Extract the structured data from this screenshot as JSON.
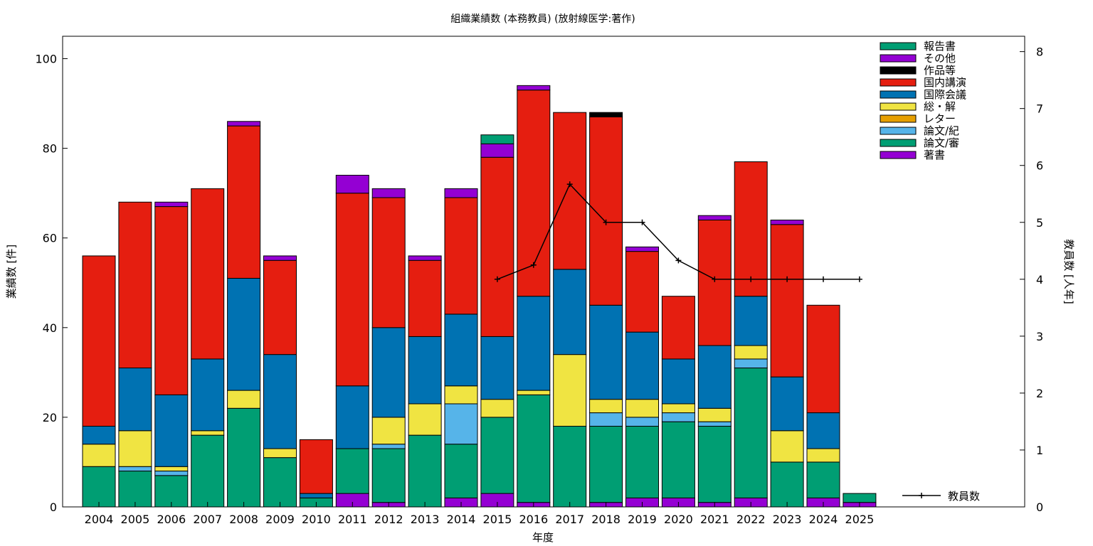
{
  "chart_data": {
    "type": "bar",
    "stacked": true,
    "title": "組織業績数 (本務教員) (放射線医学:著作)",
    "xlabel": "年度",
    "ylabel": "業績数 [件]",
    "y2label": "教員数 [人年]",
    "ylim": [
      0,
      105
    ],
    "y2lim": [
      0,
      8.27
    ],
    "yticks": [
      0,
      20,
      40,
      60,
      80,
      100
    ],
    "y2ticks": [
      0,
      1,
      2,
      3,
      4,
      5,
      6,
      7,
      8
    ],
    "grid": false,
    "legend_position": "top-right",
    "categories": [
      "2004",
      "2005",
      "2006",
      "2007",
      "2008",
      "2009",
      "2010",
      "2011",
      "2012",
      "2013",
      "2014",
      "2015",
      "2016",
      "2017",
      "2018",
      "2019",
      "2020",
      "2021",
      "2022",
      "2023",
      "2024",
      "2025"
    ],
    "series": [
      {
        "name": "著書",
        "color": "#9400d3",
        "values": [
          0,
          0,
          0,
          0,
          0,
          0,
          0,
          3,
          1,
          0,
          2,
          3,
          1,
          0,
          1,
          2,
          2,
          1,
          2,
          0,
          2,
          1
        ]
      },
      {
        "name": "論文/審",
        "color": "#009e73",
        "values": [
          9,
          8,
          7,
          16,
          22,
          11,
          2,
          10,
          12,
          16,
          12,
          17,
          24,
          18,
          17,
          16,
          17,
          17,
          29,
          10,
          8,
          0
        ]
      },
      {
        "name": "論文/紀",
        "color": "#56b4e9",
        "values": [
          0,
          1,
          1,
          0,
          0,
          0,
          0,
          0,
          1,
          0,
          9,
          0,
          0,
          0,
          3,
          2,
          2,
          1,
          2,
          0,
          0,
          0
        ]
      },
      {
        "name": "レター",
        "color": "#e69f00",
        "values": [
          0,
          0,
          0,
          0,
          0,
          0,
          0,
          0,
          0,
          0,
          0,
          0,
          0,
          0,
          0,
          0,
          0,
          0,
          0,
          0,
          0,
          0
        ]
      },
      {
        "name": "総・解",
        "color": "#f0e442",
        "values": [
          5,
          8,
          1,
          1,
          4,
          2,
          0,
          0,
          6,
          7,
          4,
          4,
          1,
          16,
          3,
          4,
          2,
          3,
          3,
          7,
          3,
          0
        ]
      },
      {
        "name": "国際会議",
        "color": "#0072b2",
        "values": [
          4,
          14,
          16,
          16,
          25,
          21,
          1,
          14,
          20,
          15,
          16,
          14,
          21,
          19,
          21,
          15,
          10,
          14,
          11,
          12,
          8,
          0
        ]
      },
      {
        "name": "国内講演",
        "color": "#e51e10",
        "values": [
          38,
          37,
          42,
          38,
          34,
          21,
          12,
          43,
          29,
          17,
          26,
          40,
          46,
          35,
          42,
          18,
          14,
          28,
          30,
          34,
          24,
          0
        ]
      },
      {
        "name": "作品等",
        "color": "#000000",
        "values": [
          0,
          0,
          0,
          0,
          0,
          0,
          0,
          0,
          0,
          0,
          0,
          0,
          0,
          0,
          1,
          0,
          0,
          0,
          0,
          0,
          0,
          0
        ]
      },
      {
        "name": "その他",
        "color": "#9400d3",
        "values": [
          0,
          0,
          1,
          0,
          1,
          1,
          0,
          4,
          2,
          1,
          2,
          3,
          1,
          0,
          0,
          1,
          0,
          1,
          0,
          1,
          0,
          0
        ]
      },
      {
        "name": "報告書",
        "color": "#009e73",
        "values": [
          0,
          0,
          0,
          0,
          0,
          0,
          0,
          0,
          0,
          0,
          0,
          2,
          0,
          0,
          0,
          0,
          0,
          0,
          0,
          0,
          0,
          2
        ]
      }
    ],
    "line_series": {
      "name": "教員数",
      "color": "#000000",
      "axis": "y2",
      "categories": [
        "2015",
        "2016",
        "2017",
        "2018",
        "2019",
        "2020",
        "2021",
        "2022",
        "2023",
        "2024",
        "2025"
      ],
      "values": [
        4,
        4.25,
        5.67,
        5,
        5,
        4.33,
        4,
        4,
        4,
        4,
        4
      ]
    }
  }
}
